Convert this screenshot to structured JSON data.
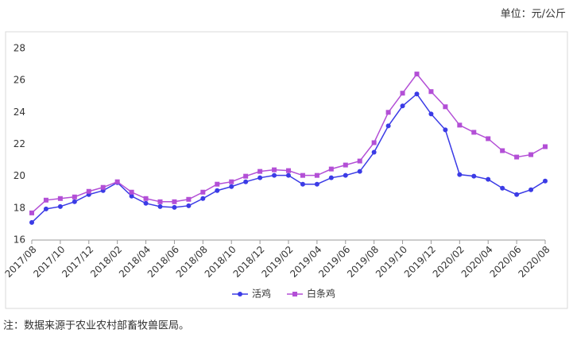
{
  "chart_data": {
    "type": "line",
    "unit": "单位：元/公斤",
    "note": "注：数据来源于农业农村部畜牧兽医局。",
    "categories": [
      "2017/08",
      null,
      "2017/10",
      null,
      "2017/12",
      null,
      "2018/02",
      null,
      "2018/04",
      null,
      "2018/06",
      null,
      "2018/08",
      null,
      "2018/10",
      null,
      "2018/12",
      null,
      "2019/02",
      null,
      "2019/04",
      null,
      "2019/06",
      null,
      "2019/08",
      null,
      "2019/10",
      null,
      "2019/12",
      null,
      "2020/02",
      null,
      "2020/04",
      null,
      "2020/06",
      null,
      "2020/08"
    ],
    "series": [
      {
        "name": "活鸡",
        "color": "#3b3be6",
        "marker": "circle",
        "values": [
          17.1,
          17.95,
          18.1,
          18.4,
          18.85,
          19.1,
          19.6,
          18.75,
          18.3,
          18.1,
          18.05,
          18.15,
          18.6,
          19.1,
          19.35,
          19.65,
          19.9,
          20.05,
          20.05,
          19.5,
          19.5,
          19.9,
          20.05,
          20.3,
          21.5,
          23.15,
          24.4,
          25.15,
          23.9,
          22.9,
          20.1,
          20.0,
          19.8,
          19.25,
          18.85,
          19.15,
          19.7
        ]
      },
      {
        "name": "白条鸡",
        "color": "#b34fd6",
        "marker": "square",
        "values": [
          17.7,
          18.5,
          18.6,
          18.7,
          19.05,
          19.3,
          19.65,
          19.0,
          18.6,
          18.4,
          18.4,
          18.55,
          19.0,
          19.5,
          19.65,
          20.0,
          20.3,
          20.4,
          20.35,
          20.05,
          20.05,
          20.45,
          20.7,
          20.95,
          22.1,
          24.0,
          25.2,
          26.4,
          25.3,
          24.35,
          23.2,
          22.75,
          22.35,
          21.6,
          21.2,
          21.35,
          21.85
        ]
      }
    ],
    "ylim": [
      16,
      28
    ],
    "yticks": [
      16,
      18,
      20,
      22,
      24,
      26,
      28
    ],
    "grid": false,
    "legend": "bottom"
  }
}
